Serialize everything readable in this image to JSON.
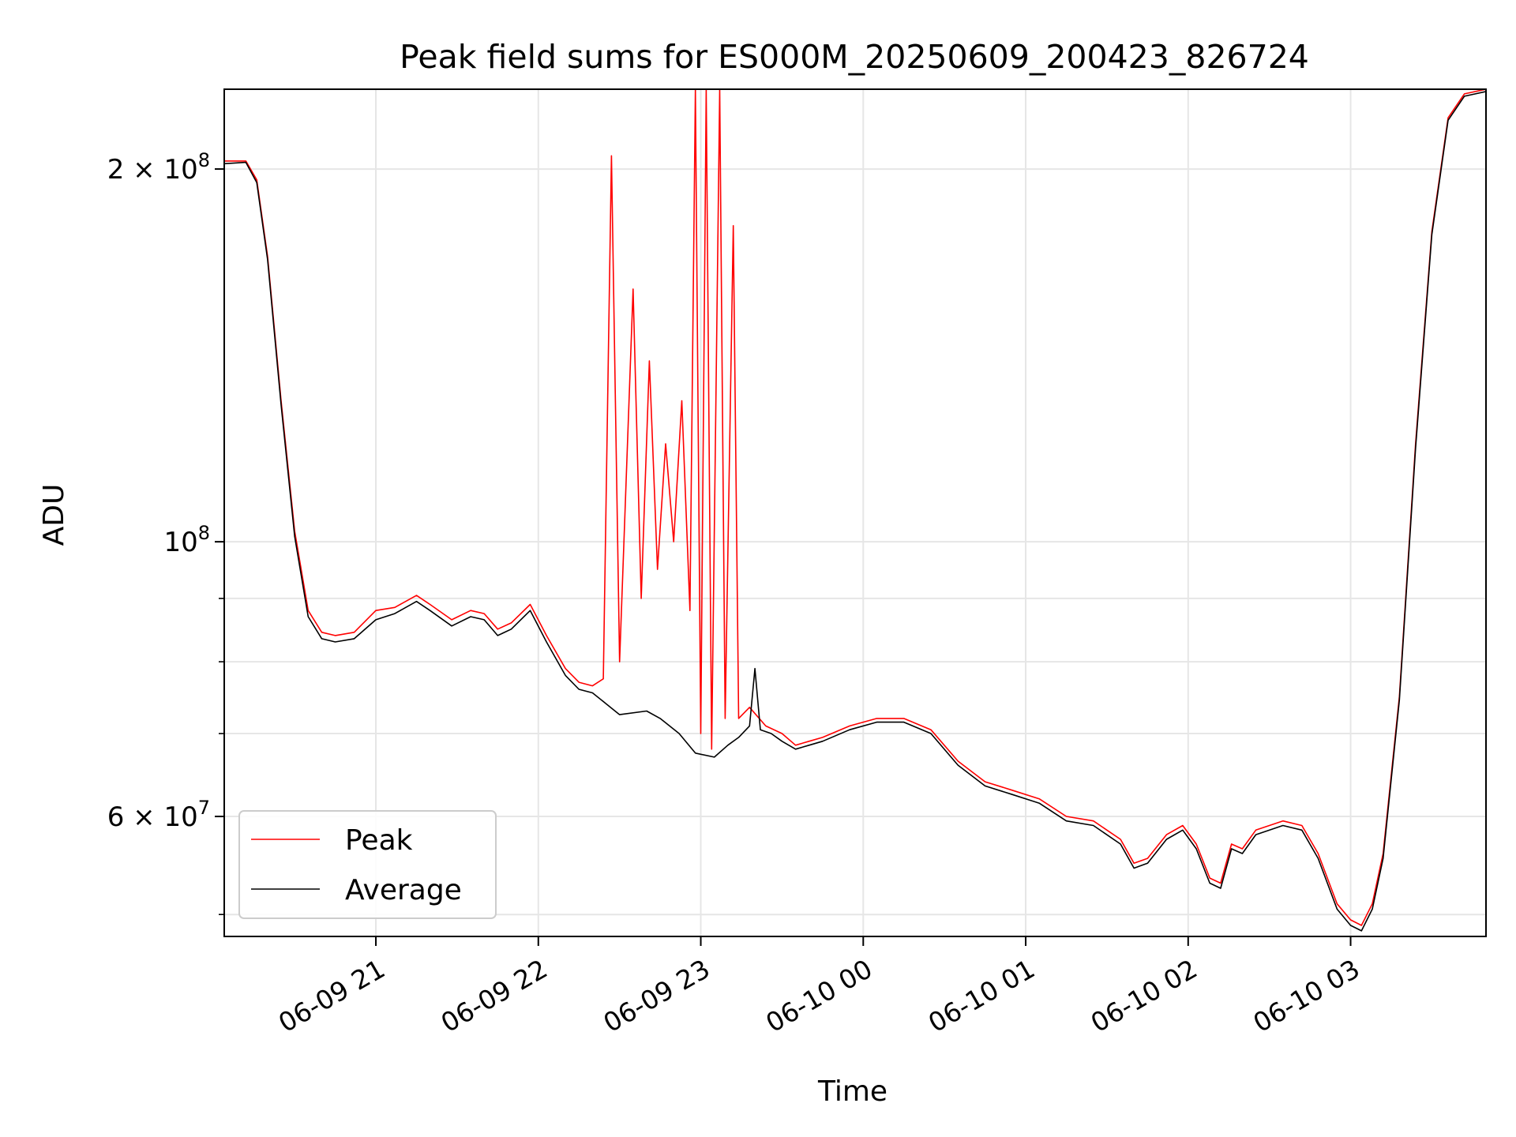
{
  "chart_data": {
    "type": "line",
    "title": "Peak field sums for ES000M_20250609_200423_826724",
    "xlabel": "Time",
    "ylabel": "ADU",
    "yscale": "log",
    "xlim": [
      "2025-06-09 20:04",
      "2025-06-10 03:50"
    ],
    "ylim": [
      48000000,
      232000000
    ],
    "x_ticks": [
      "2025-06-09 21:00",
      "2025-06-09 22:00",
      "2025-06-09 23:00",
      "2025-06-10 00:00",
      "2025-06-10 01:00",
      "2025-06-10 02:00",
      "2025-06-10 03:00"
    ],
    "x_tick_labels": [
      "06-09 21",
      "06-09 22",
      "06-09 23",
      "06-10 00",
      "06-10 01",
      "06-10 02",
      "06-10 03"
    ],
    "y_major_ticks": [
      {
        "value": 200000000,
        "label": "2×10^8",
        "mantissa": "2 × 10",
        "exp": "8"
      },
      {
        "value": 100000000,
        "label": "10^8",
        "mantissa": "10",
        "exp": "8"
      },
      {
        "value": 60000000,
        "label": "6×10^7",
        "mantissa": "6 × 10",
        "exp": "7"
      }
    ],
    "y_minor_ticks": [
      50000000,
      70000000,
      80000000,
      90000000
    ],
    "grid": true,
    "legend": {
      "placement": "lower-left"
    },
    "series": [
      {
        "name": "Peak",
        "color": "#ff0000",
        "points": [
          [
            "2025-06-09 20:04",
            203000000
          ],
          [
            "2025-06-09 20:12",
            203000000
          ],
          [
            "2025-06-09 20:16",
            196000000
          ],
          [
            "2025-06-09 20:20",
            170000000
          ],
          [
            "2025-06-09 20:25",
            130000000
          ],
          [
            "2025-06-09 20:30",
            102000000
          ],
          [
            "2025-06-09 20:35",
            88000000
          ],
          [
            "2025-06-09 20:40",
            84500000
          ],
          [
            "2025-06-09 20:45",
            84000000
          ],
          [
            "2025-06-09 20:52",
            84500000
          ],
          [
            "2025-06-09 21:00",
            88000000
          ],
          [
            "2025-06-09 21:07",
            88500000
          ],
          [
            "2025-06-09 21:15",
            90500000
          ],
          [
            "2025-06-09 21:20",
            89000000
          ],
          [
            "2025-06-09 21:28",
            86500000
          ],
          [
            "2025-06-09 21:35",
            88000000
          ],
          [
            "2025-06-09 21:40",
            87500000
          ],
          [
            "2025-06-09 21:45",
            85000000
          ],
          [
            "2025-06-09 21:50",
            86000000
          ],
          [
            "2025-06-09 21:57",
            89000000
          ],
          [
            "2025-06-09 22:03",
            84000000
          ],
          [
            "2025-06-09 22:10",
            79000000
          ],
          [
            "2025-06-09 22:15",
            77000000
          ],
          [
            "2025-06-09 22:20",
            76500000
          ],
          [
            "2025-06-09 22:24",
            77500000
          ],
          [
            "2025-06-09 22:27",
            205000000
          ],
          [
            "2025-06-09 22:30",
            80000000
          ],
          [
            "2025-06-09 22:35",
            160000000
          ],
          [
            "2025-06-09 22:38",
            90000000
          ],
          [
            "2025-06-09 22:41",
            140000000
          ],
          [
            "2025-06-09 22:44",
            95000000
          ],
          [
            "2025-06-09 22:47",
            120000000
          ],
          [
            "2025-06-09 22:50",
            100000000
          ],
          [
            "2025-06-09 22:53",
            130000000
          ],
          [
            "2025-06-09 22:56",
            88000000
          ],
          [
            "2025-06-09 22:58",
            232000000
          ],
          [
            "2025-06-09 23:00",
            70000000
          ],
          [
            "2025-06-09 23:02",
            232000000
          ],
          [
            "2025-06-09 23:04",
            68000000
          ],
          [
            "2025-06-09 23:07",
            232000000
          ],
          [
            "2025-06-09 23:09",
            72000000
          ],
          [
            "2025-06-09 23:12",
            180000000
          ],
          [
            "2025-06-09 23:14",
            72000000
          ],
          [
            "2025-06-09 23:18",
            73500000
          ],
          [
            "2025-06-09 23:24",
            71000000
          ],
          [
            "2025-06-09 23:30",
            70000000
          ],
          [
            "2025-06-09 23:35",
            68500000
          ],
          [
            "2025-06-09 23:40",
            69000000
          ],
          [
            "2025-06-09 23:45",
            69500000
          ],
          [
            "2025-06-09 23:55",
            71000000
          ],
          [
            "2025-06-10 00:05",
            72000000
          ],
          [
            "2025-06-10 00:15",
            72000000
          ],
          [
            "2025-06-10 00:25",
            70500000
          ],
          [
            "2025-06-10 00:35",
            66500000
          ],
          [
            "2025-06-10 00:45",
            64000000
          ],
          [
            "2025-06-10 00:55",
            63000000
          ],
          [
            "2025-06-10 01:05",
            62000000
          ],
          [
            "2025-06-10 01:15",
            60000000
          ],
          [
            "2025-06-10 01:25",
            59500000
          ],
          [
            "2025-06-10 01:35",
            57500000
          ],
          [
            "2025-06-10 01:40",
            55000000
          ],
          [
            "2025-06-10 01:45",
            55500000
          ],
          [
            "2025-06-10 01:52",
            58000000
          ],
          [
            "2025-06-10 01:58",
            59000000
          ],
          [
            "2025-06-10 02:03",
            57000000
          ],
          [
            "2025-06-10 02:08",
            53500000
          ],
          [
            "2025-06-10 02:12",
            53000000
          ],
          [
            "2025-06-10 02:16",
            57000000
          ],
          [
            "2025-06-10 02:20",
            56500000
          ],
          [
            "2025-06-10 02:25",
            58500000
          ],
          [
            "2025-06-10 02:35",
            59500000
          ],
          [
            "2025-06-10 02:42",
            59000000
          ],
          [
            "2025-06-10 02:48",
            56000000
          ],
          [
            "2025-06-10 02:55",
            51000000
          ],
          [
            "2025-06-10 03:00",
            49500000
          ],
          [
            "2025-06-10 03:04",
            49000000
          ],
          [
            "2025-06-10 03:08",
            51000000
          ],
          [
            "2025-06-10 03:12",
            56000000
          ],
          [
            "2025-06-10 03:18",
            75000000
          ],
          [
            "2025-06-10 03:24",
            120000000
          ],
          [
            "2025-06-10 03:30",
            178000000
          ],
          [
            "2025-06-10 03:36",
            220000000
          ],
          [
            "2025-06-10 03:42",
            230000000
          ],
          [
            "2025-06-10 03:50",
            232000000
          ]
        ]
      },
      {
        "name": "Average",
        "color": "#000000",
        "points": [
          [
            "2025-06-09 20:04",
            202000000
          ],
          [
            "2025-06-09 20:12",
            202500000
          ],
          [
            "2025-06-09 20:16",
            195000000
          ],
          [
            "2025-06-09 20:20",
            169000000
          ],
          [
            "2025-06-09 20:25",
            129000000
          ],
          [
            "2025-06-09 20:30",
            101000000
          ],
          [
            "2025-06-09 20:35",
            87000000
          ],
          [
            "2025-06-09 20:40",
            83500000
          ],
          [
            "2025-06-09 20:45",
            83000000
          ],
          [
            "2025-06-09 20:52",
            83500000
          ],
          [
            "2025-06-09 21:00",
            86500000
          ],
          [
            "2025-06-09 21:07",
            87500000
          ],
          [
            "2025-06-09 21:15",
            89500000
          ],
          [
            "2025-06-09 21:20",
            88000000
          ],
          [
            "2025-06-09 21:28",
            85500000
          ],
          [
            "2025-06-09 21:35",
            87000000
          ],
          [
            "2025-06-09 21:40",
            86500000
          ],
          [
            "2025-06-09 21:45",
            84000000
          ],
          [
            "2025-06-09 21:50",
            85000000
          ],
          [
            "2025-06-09 21:57",
            88000000
          ],
          [
            "2025-06-09 22:03",
            83000000
          ],
          [
            "2025-06-09 22:10",
            78000000
          ],
          [
            "2025-06-09 22:15",
            76000000
          ],
          [
            "2025-06-09 22:20",
            75500000
          ],
          [
            "2025-06-09 22:25",
            74000000
          ],
          [
            "2025-06-09 22:30",
            72500000
          ],
          [
            "2025-06-09 22:40",
            73000000
          ],
          [
            "2025-06-09 22:45",
            72000000
          ],
          [
            "2025-06-09 22:52",
            70000000
          ],
          [
            "2025-06-09 22:58",
            67500000
          ],
          [
            "2025-06-09 23:05",
            67000000
          ],
          [
            "2025-06-09 23:10",
            68500000
          ],
          [
            "2025-06-09 23:14",
            69500000
          ],
          [
            "2025-06-09 23:18",
            71000000
          ],
          [
            "2025-06-09 23:20",
            79000000
          ],
          [
            "2025-06-09 23:22",
            70500000
          ],
          [
            "2025-06-09 23:26",
            70000000
          ],
          [
            "2025-06-09 23:30",
            69000000
          ],
          [
            "2025-06-09 23:35",
            68000000
          ],
          [
            "2025-06-09 23:40",
            68500000
          ],
          [
            "2025-06-09 23:45",
            69000000
          ],
          [
            "2025-06-09 23:55",
            70500000
          ],
          [
            "2025-06-10 00:05",
            71500000
          ],
          [
            "2025-06-10 00:15",
            71500000
          ],
          [
            "2025-06-10 00:25",
            70000000
          ],
          [
            "2025-06-10 00:35",
            66000000
          ],
          [
            "2025-06-10 00:45",
            63500000
          ],
          [
            "2025-06-10 00:55",
            62500000
          ],
          [
            "2025-06-10 01:05",
            61500000
          ],
          [
            "2025-06-10 01:15",
            59500000
          ],
          [
            "2025-06-10 01:25",
            59000000
          ],
          [
            "2025-06-10 01:35",
            57000000
          ],
          [
            "2025-06-10 01:40",
            54500000
          ],
          [
            "2025-06-10 01:45",
            55000000
          ],
          [
            "2025-06-10 01:52",
            57500000
          ],
          [
            "2025-06-10 01:58",
            58500000
          ],
          [
            "2025-06-10 02:03",
            56500000
          ],
          [
            "2025-06-10 02:08",
            53000000
          ],
          [
            "2025-06-10 02:12",
            52500000
          ],
          [
            "2025-06-10 02:16",
            56500000
          ],
          [
            "2025-06-10 02:20",
            56000000
          ],
          [
            "2025-06-10 02:25",
            58000000
          ],
          [
            "2025-06-10 02:35",
            59000000
          ],
          [
            "2025-06-10 02:42",
            58500000
          ],
          [
            "2025-06-10 02:48",
            55500000
          ],
          [
            "2025-06-10 02:55",
            50500000
          ],
          [
            "2025-06-10 03:00",
            49000000
          ],
          [
            "2025-06-10 03:04",
            48500000
          ],
          [
            "2025-06-10 03:08",
            50500000
          ],
          [
            "2025-06-10 03:12",
            55500000
          ],
          [
            "2025-06-10 03:18",
            74500000
          ],
          [
            "2025-06-10 03:24",
            119000000
          ],
          [
            "2025-06-10 03:30",
            177000000
          ],
          [
            "2025-06-10 03:36",
            219000000
          ],
          [
            "2025-06-10 03:42",
            229000000
          ],
          [
            "2025-06-10 03:50",
            231000000
          ]
        ]
      }
    ]
  }
}
